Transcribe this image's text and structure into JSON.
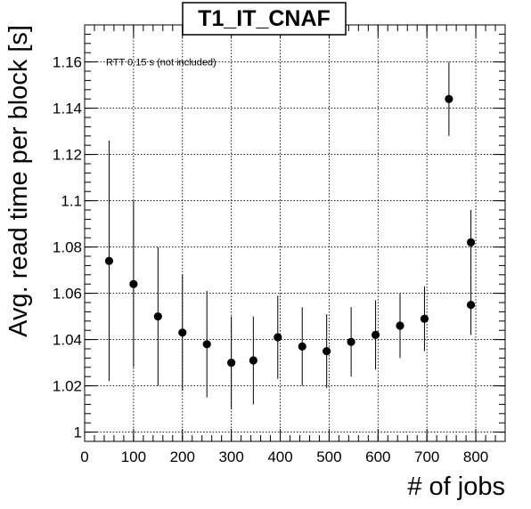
{
  "chart_data": {
    "type": "scatter",
    "title": "T1_IT_CNAF",
    "xlabel": "# of jobs",
    "ylabel": "Avg. read time per block [s]",
    "annotation": "RTT 0.15 s (not included)",
    "xlim": [
      0,
      860
    ],
    "ylim": [
      0.996,
      1.176
    ],
    "x_ticks": [
      0,
      100,
      200,
      300,
      400,
      500,
      600,
      700,
      800
    ],
    "y_ticks": [
      1,
      1.02,
      1.04,
      1.06,
      1.08,
      1.1,
      1.12,
      1.14,
      1.16
    ],
    "grid": true,
    "error_bars": true,
    "points": [
      {
        "x": 50,
        "y": 1.074,
        "err": 0.052
      },
      {
        "x": 100,
        "y": 1.064,
        "err": 0.036
      },
      {
        "x": 150,
        "y": 1.05,
        "err": 0.03
      },
      {
        "x": 200,
        "y": 1.043,
        "err": 0.025
      },
      {
        "x": 250,
        "y": 1.038,
        "err": 0.023
      },
      {
        "x": 300,
        "y": 1.03,
        "err": 0.02
      },
      {
        "x": 345,
        "y": 1.031,
        "err": 0.019
      },
      {
        "x": 395,
        "y": 1.041,
        "err": 0.018
      },
      {
        "x": 445,
        "y": 1.037,
        "err": 0.017
      },
      {
        "x": 495,
        "y": 1.035,
        "err": 0.016
      },
      {
        "x": 545,
        "y": 1.039,
        "err": 0.015
      },
      {
        "x": 595,
        "y": 1.042,
        "err": 0.015
      },
      {
        "x": 645,
        "y": 1.046,
        "err": 0.014
      },
      {
        "x": 695,
        "y": 1.049,
        "err": 0.014
      },
      {
        "x": 745,
        "y": 1.144,
        "err": 0.016
      },
      {
        "x": 790,
        "y": 1.082,
        "err": 0.014
      },
      {
        "x": 790,
        "y": 1.055,
        "err": 0.013
      }
    ]
  }
}
